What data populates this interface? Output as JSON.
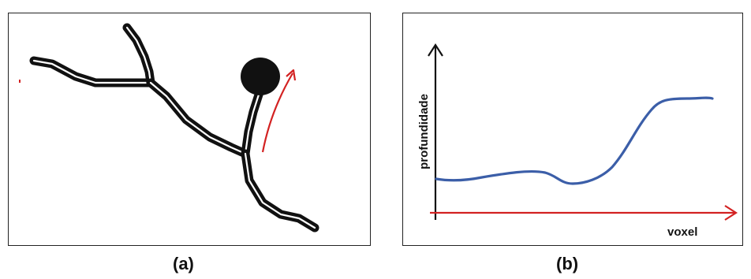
{
  "panel_a": {
    "caption": "(a)"
  },
  "panel_b": {
    "caption": "(b)",
    "y_axis_label": "profundidade",
    "x_axis_label": "voxel"
  },
  "colors": {
    "vessel": "#111111",
    "arrow_red": "#d32222",
    "curve_blue": "#3b5ea8",
    "axis_black": "#111111"
  }
}
